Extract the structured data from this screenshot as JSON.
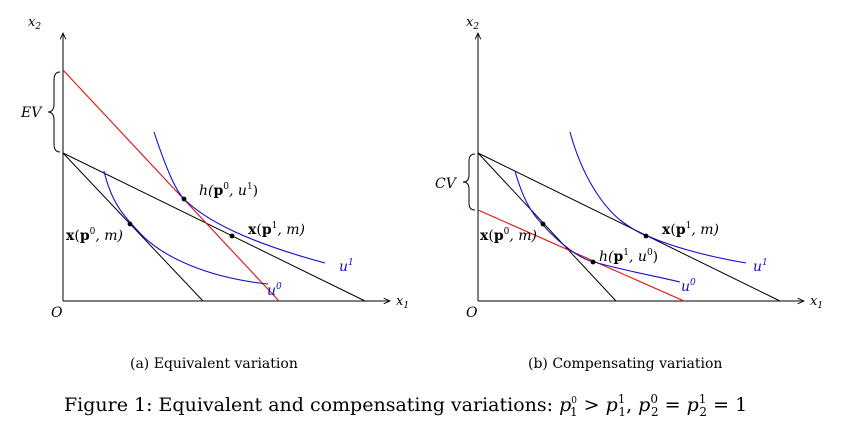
{
  "panel_a": {
    "caption": "(a) Equivalent variation",
    "x_axis_label": "x",
    "x_axis_sub": "1",
    "y_axis_label": "x",
    "y_axis_sub": "2",
    "origin_label": "O",
    "brace_label": "EV",
    "point_p0": {
      "x": "x",
      "p": "p",
      "sup": "0",
      "rest": ", m)"
    },
    "point_h": {
      "h": "h(",
      "p": "p",
      "sup1": "0",
      "mid": ", u",
      "sup2": "1",
      "end": ")"
    },
    "point_p1": {
      "x": "x",
      "p": "p",
      "sup": "1",
      "rest": ", m)"
    },
    "curve_u0": {
      "u": "u",
      "sup": "0"
    },
    "curve_u1": {
      "u": "u",
      "sup": "1"
    }
  },
  "panel_b": {
    "caption": "(b) Compensating variation",
    "x_axis_label": "x",
    "x_axis_sub": "1",
    "y_axis_label": "x",
    "y_axis_sub": "2",
    "origin_label": "O",
    "brace_label": "CV",
    "point_p0": {
      "x": "x",
      "p": "p",
      "sup": "0",
      "rest": ", m)"
    },
    "point_h": {
      "h": "h(",
      "p": "p",
      "sup1": "1",
      "mid": ", u",
      "sup2": "0",
      "end": ")"
    },
    "point_p1": {
      "x": "x",
      "p": "p",
      "sup": "1",
      "rest": ", m)"
    },
    "curve_u0": {
      "u": "u",
      "sup": "0"
    },
    "curve_u1": {
      "u": "u",
      "sup": "1"
    }
  },
  "figure_caption": {
    "prefix": "Figure 1: Equivalent and compensating variations: ",
    "p": "p",
    "rel_gt": " > ",
    "rel_eq": " = ",
    "comma": ", ",
    "sup0": "0",
    "sup1": "1",
    "sub1": "1",
    "sub2": "2",
    "tail": "1"
  },
  "colors": {
    "axis": "#000000",
    "budget_line": "#000000",
    "compensated_line": "#e01010",
    "indifference_curve": "#1010d0"
  }
}
